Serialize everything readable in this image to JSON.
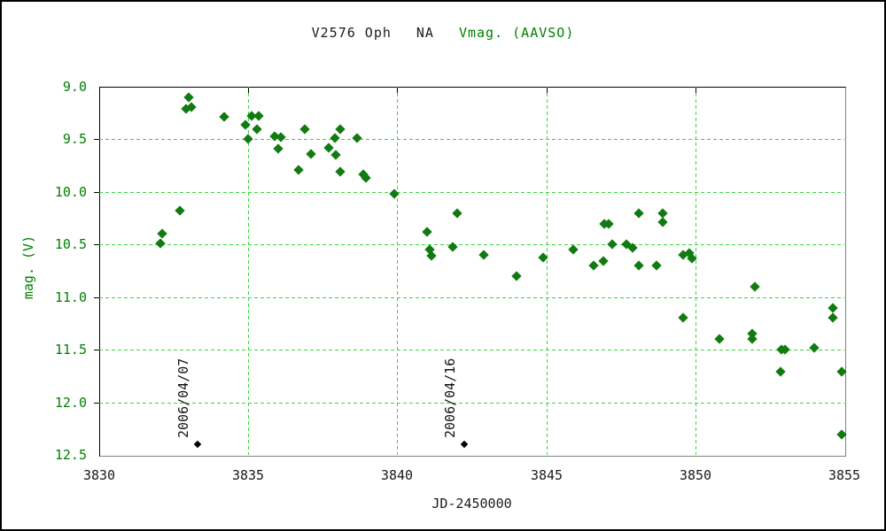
{
  "title": {
    "object_name": "V2576 Oph",
    "code": "NA",
    "series_label": "Vmag. (AAVSO)"
  },
  "colors": {
    "grid_green": "#3cd63c",
    "label_green": "#008000",
    "point_green": "#117b11",
    "axis_black": "#1a1a1a",
    "annotation_black": "#000000"
  },
  "chart_data": {
    "type": "scatter",
    "title": "V2576 Oph  NA  Vmag. (AAVSO)",
    "xlabel": "JD-2450000",
    "ylabel": "mag. (V)",
    "xlim": [
      3830,
      3855
    ],
    "ylim": [
      9.0,
      12.5
    ],
    "y_inverted": true,
    "grid": true,
    "x_ticks": [
      3830,
      3835,
      3840,
      3845,
      3850,
      3855
    ],
    "y_ticks": [
      9.0,
      9.5,
      10.0,
      10.5,
      11.0,
      11.5,
      12.0,
      12.5
    ],
    "series": [
      {
        "name": "Vmag. (AAVSO)",
        "marker": "diamond",
        "color": "#117b11",
        "points": [
          [
            3832.05,
            10.49
          ],
          [
            3832.1,
            10.4
          ],
          [
            3832.7,
            10.18
          ],
          [
            3832.9,
            9.21
          ],
          [
            3833.0,
            9.1
          ],
          [
            3833.1,
            9.19
          ],
          [
            3834.2,
            9.29
          ],
          [
            3834.9,
            9.36
          ],
          [
            3835.0,
            9.5
          ],
          [
            3835.1,
            9.28
          ],
          [
            3835.35,
            9.28
          ],
          [
            3835.3,
            9.4
          ],
          [
            3835.9,
            9.47
          ],
          [
            3836.0,
            9.59
          ],
          [
            3836.1,
            9.48
          ],
          [
            3836.7,
            9.79
          ],
          [
            3836.9,
            9.4
          ],
          [
            3837.1,
            9.64
          ],
          [
            3837.7,
            9.58
          ],
          [
            3837.9,
            9.49
          ],
          [
            3837.95,
            9.65
          ],
          [
            3838.1,
            9.4
          ],
          [
            3838.1,
            9.81
          ],
          [
            3838.65,
            9.49
          ],
          [
            3838.85,
            9.83
          ],
          [
            3838.95,
            9.87
          ],
          [
            3839.9,
            10.02
          ],
          [
            3841.0,
            10.38
          ],
          [
            3841.1,
            10.55
          ],
          [
            3841.15,
            10.61
          ],
          [
            3841.85,
            10.52
          ],
          [
            3842.0,
            10.2
          ],
          [
            3842.9,
            10.6
          ],
          [
            3844.0,
            10.8
          ],
          [
            3844.9,
            10.62
          ],
          [
            3845.9,
            10.55
          ],
          [
            3846.6,
            10.7
          ],
          [
            3846.9,
            10.66
          ],
          [
            3846.95,
            10.3
          ],
          [
            3847.1,
            10.3
          ],
          [
            3847.2,
            10.5
          ],
          [
            3847.7,
            10.5
          ],
          [
            3847.9,
            10.53
          ],
          [
            3848.1,
            10.2
          ],
          [
            3848.1,
            10.7
          ],
          [
            3848.7,
            10.7
          ],
          [
            3848.9,
            10.2
          ],
          [
            3848.9,
            10.29
          ],
          [
            3849.6,
            10.6
          ],
          [
            3849.8,
            10.58
          ],
          [
            3849.9,
            10.63
          ],
          [
            3849.6,
            11.2
          ],
          [
            3850.8,
            11.4
          ],
          [
            3851.9,
            11.35
          ],
          [
            3851.9,
            11.4
          ],
          [
            3852.0,
            10.9
          ],
          [
            3852.85,
            11.71
          ],
          [
            3852.9,
            11.5
          ],
          [
            3853.0,
            11.5
          ],
          [
            3854.0,
            11.48
          ],
          [
            3854.6,
            11.1
          ],
          [
            3854.6,
            11.2
          ],
          [
            3854.9,
            11.71
          ],
          [
            3854.9,
            12.31
          ]
        ]
      }
    ],
    "annotations": [
      {
        "jd": 3833.3,
        "mag": 12.4,
        "label": "2006/04/07"
      },
      {
        "jd": 3842.25,
        "mag": 12.4,
        "label": "2006/04/16"
      }
    ]
  }
}
